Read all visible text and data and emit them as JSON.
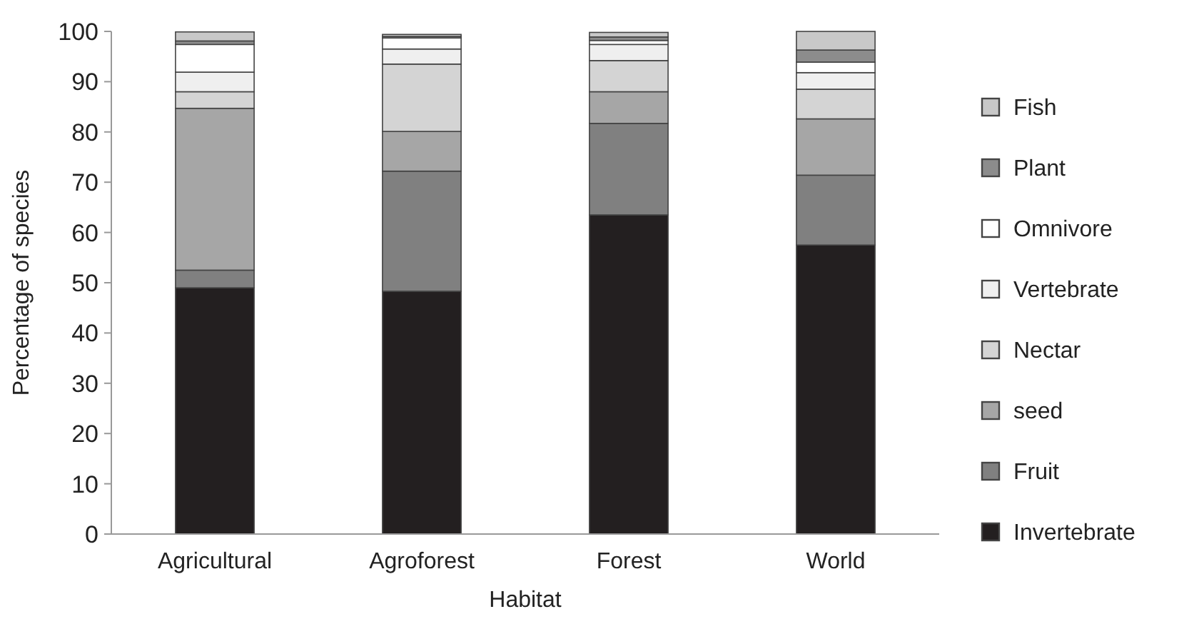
{
  "chart_data": {
    "type": "bar",
    "stacked": true,
    "xlabel": "Habitat",
    "ylabel": "Percentage of species",
    "categories": [
      "Agricultural",
      "Agroforest",
      "Forest",
      "World"
    ],
    "series": [
      {
        "name": "Invertebrate",
        "color": "#231f20",
        "values": [
          49,
          48.3,
          63.5,
          57.5
        ]
      },
      {
        "name": "Fruit",
        "color": "#808080",
        "values": [
          3.5,
          23.9,
          18.2,
          13.9
        ]
      },
      {
        "name": "seed",
        "color": "#a6a6a6",
        "values": [
          32.2,
          7.9,
          6.3,
          11.2
        ]
      },
      {
        "name": "Nectar",
        "color": "#d4d4d4",
        "values": [
          3.3,
          13.4,
          6.2,
          5.9
        ]
      },
      {
        "name": "Vertebrate",
        "color": "#efefef",
        "values": [
          3.9,
          3,
          3.2,
          3.3
        ]
      },
      {
        "name": "Omnivore",
        "color": "#ffffff",
        "values": [
          5.5,
          2.2,
          0.8,
          2.1
        ]
      },
      {
        "name": "Plant",
        "color": "#8c8c8c",
        "values": [
          0.7,
          0.3,
          0.7,
          2.4
        ]
      },
      {
        "name": "Fish",
        "color": "#c8c8c8",
        "values": [
          1.8,
          0.4,
          0.9,
          3.7
        ]
      }
    ],
    "ylim": [
      0,
      100
    ],
    "yticks": [
      0,
      10,
      20,
      30,
      40,
      50,
      60,
      70,
      80,
      90,
      100
    ],
    "legend": "right",
    "grid": false
  }
}
